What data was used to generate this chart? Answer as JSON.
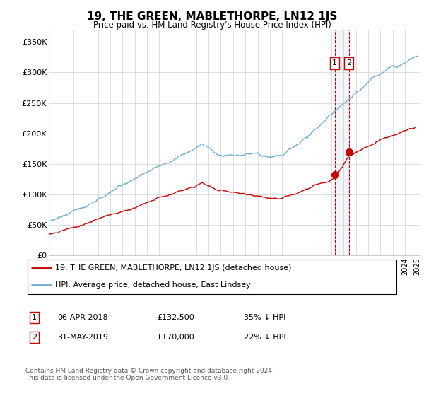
{
  "title": "19, THE GREEN, MABLETHORPE, LN12 1JS",
  "subtitle": "Price paid vs. HM Land Registry's House Price Index (HPI)",
  "legend_line1": "19, THE GREEN, MABLETHORPE, LN12 1JS (detached house)",
  "legend_line2": "HPI: Average price, detached house, East Lindsey",
  "transaction1_label": "1",
  "transaction1_date": "06-APR-2018",
  "transaction1_price": "£132,500",
  "transaction1_pct": "35% ↓ HPI",
  "transaction2_label": "2",
  "transaction2_date": "31-MAY-2019",
  "transaction2_price": "£170,000",
  "transaction2_pct": "22% ↓ HPI",
  "footer": "Contains HM Land Registry data © Crown copyright and database right 2024.\nThis data is licensed under the Open Government Licence v3.0.",
  "hpi_color": "#6baed6",
  "price_color": "#cc0000",
  "vline_color": "#cc0000",
  "background_color": "#ffffff",
  "ylim": [
    0,
    370000
  ],
  "yticks": [
    0,
    50000,
    100000,
    150000,
    200000,
    250000,
    300000,
    350000
  ],
  "ytick_labels": [
    "£0",
    "£50K",
    "£100K",
    "£150K",
    "£200K",
    "£250K",
    "£300K",
    "£350K"
  ],
  "transaction1_year": 2018.27,
  "transaction1_value": 132500,
  "transaction2_year": 2019.42,
  "transaction2_value": 170000,
  "shade_color": "#c6dbef"
}
